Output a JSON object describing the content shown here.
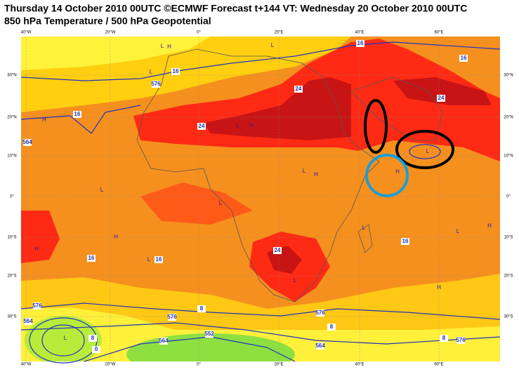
{
  "header": {
    "title": "Thursday 14 October 2010 00UTC ©ECMWF Forecast t+144 VT: Wednesday 20 October 2010 00UTC",
    "subtitle": "850 hPa Temperature / 500 hPa Geopotential"
  },
  "map": {
    "longitude_labels": [
      "40°W",
      "20°W",
      "0°",
      "20°E",
      "40°E",
      "60°E"
    ],
    "latitude_labels": [
      "30°N",
      "20°N",
      "10°N",
      "0°",
      "10°S",
      "20°S",
      "30°S"
    ],
    "contour_labels": [
      "16",
      "16",
      "16",
      "24",
      "24",
      "16",
      "24",
      "24",
      "16",
      "16",
      "16",
      "8",
      "8",
      "8",
      "8",
      "576",
      "564",
      "576",
      "564",
      "576",
      "564",
      "552",
      "0",
      "576",
      "564",
      "576"
    ],
    "pressure_centers": [
      "L",
      "H",
      "L",
      "L",
      "H",
      "L",
      "H",
      "L",
      "H",
      "L",
      "H",
      "L",
      "L",
      "L",
      "L",
      "H",
      "H",
      "H",
      "L",
      "L",
      "H",
      "L"
    ]
  }
}
